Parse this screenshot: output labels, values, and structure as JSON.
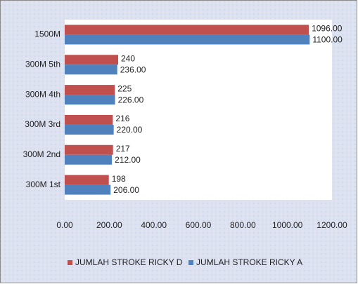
{
  "chart_data": {
    "type": "hbar",
    "categories": [
      "1500M",
      "300M 5th",
      "300M 4th",
      "300M 3rd",
      "300M 2nd",
      "300M 1st"
    ],
    "series": [
      {
        "name": "JUMLAH STROKE RICKY D",
        "color": "#c0504d",
        "values": [
          1096,
          240,
          225,
          216,
          217,
          198
        ],
        "value_labels": [
          "1096.00",
          "240",
          "225",
          "216",
          "217",
          "198"
        ]
      },
      {
        "name": "JUMLAH STROKE RICKY A",
        "color": "#4f81bd",
        "values": [
          1100,
          236,
          226,
          220,
          212,
          206
        ],
        "value_labels": [
          "1100.00",
          "236.00",
          "226.00",
          "220.00",
          "212.00",
          "206.00"
        ]
      }
    ],
    "xlim": [
      0,
      1200
    ],
    "xticks": [
      {
        "value": 0,
        "label": "0.00"
      },
      {
        "value": 200,
        "label": "200.00"
      },
      {
        "value": 400,
        "label": "400.00"
      },
      {
        "value": 600,
        "label": "600.00"
      },
      {
        "value": 800,
        "label": "800.00"
      },
      {
        "value": 1000,
        "label": "1000.00"
      },
      {
        "value": 1200,
        "label": "1200.00"
      }
    ],
    "grid": false,
    "legend": "bottom"
  }
}
